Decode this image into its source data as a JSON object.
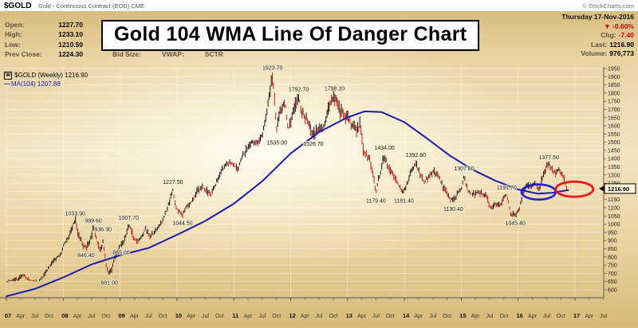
{
  "header": {
    "symbol": "$GOLD",
    "description": "Gold - Continuous Contract (EOD) CME",
    "copyright": "© StockCharts.com"
  },
  "quote_panel": {
    "rows": [
      {
        "label": "Open:",
        "value": "1227.70"
      },
      {
        "label": "High:",
        "value": "1233.10"
      },
      {
        "label": "Low:",
        "value": "1210.50"
      },
      {
        "label": "Prev Close:",
        "value": "1224.30"
      }
    ],
    "partial_labels": [
      "Bid Size:",
      "VWAP:",
      "SCTR"
    ]
  },
  "info_panel": {
    "date": "Thursday 17-Nov-2016",
    "down_arrow": "▼",
    "change_pct": "-0.60%",
    "rows": [
      {
        "label": "Chg:",
        "value": "-7.40",
        "negative": true
      },
      {
        "label": "Last:",
        "value": "1216.90",
        "negative": false
      },
      {
        "label": "Volume:",
        "value": "976,773",
        "negative": false
      }
    ]
  },
  "title_overlay": "Gold 104 WMA Line Of Danger Chart",
  "legend": {
    "periodicity_icon": "W",
    "series1_label": "$GOLD (Weekly) 1216.90",
    "series2_dash": "—",
    "series2_label": "MA(104) 1207.88"
  },
  "chart_data": {
    "type": "line",
    "symbol": "$GOLD",
    "periodicity": "Weekly",
    "title": "Gold 104 WMA Line Of Danger Chart",
    "last_price": 1216.9,
    "ma104_value": 1207.88,
    "axis_tag": "1216.90",
    "x_range": [
      2007.0,
      2017.6
    ],
    "y_axis": {
      "min": 600,
      "max": 1950,
      "step": 50
    },
    "x_ticks": {
      "year_labels": [
        "07",
        "08",
        "09",
        "10",
        "11",
        "12",
        "13",
        "14",
        "15",
        "16",
        "17"
      ],
      "month_labels": [
        "Apr",
        "Jul",
        "Oct"
      ]
    },
    "colors": {
      "grid": "rgba(255,255,255,0.42)"
    },
    "series": [
      {
        "name": "$GOLD weekly price",
        "type": "ohlc_bars",
        "colors": {
          "up": "#111111",
          "down": "#c41e1e"
        },
        "points": [
          [
            2007.0,
            640
          ],
          [
            2007.1,
            655
          ],
          [
            2007.2,
            665
          ],
          [
            2007.3,
            688
          ],
          [
            2007.45,
            652
          ],
          [
            2007.55,
            648
          ],
          [
            2007.62,
            665
          ],
          [
            2007.7,
            715
          ],
          [
            2007.78,
            745
          ],
          [
            2007.85,
            792
          ],
          [
            2007.95,
            806
          ],
          [
            2008.0,
            862
          ],
          [
            2008.08,
            915
          ],
          [
            2008.15,
            978
          ],
          [
            2008.21,
            1024
          ],
          [
            2008.27,
            938
          ],
          [
            2008.33,
            885
          ],
          [
            2008.4,
            855
          ],
          [
            2008.47,
            892
          ],
          [
            2008.53,
            978
          ],
          [
            2008.58,
            928
          ],
          [
            2008.65,
            828
          ],
          [
            2008.7,
            905
          ],
          [
            2008.76,
            742
          ],
          [
            2008.81,
            697
          ],
          [
            2008.87,
            752
          ],
          [
            2008.95,
            835
          ],
          [
            2009.02,
            878
          ],
          [
            2009.08,
            908
          ],
          [
            2009.15,
            998
          ],
          [
            2009.22,
            932
          ],
          [
            2009.3,
            892
          ],
          [
            2009.38,
            925
          ],
          [
            2009.45,
            972
          ],
          [
            2009.52,
            930
          ],
          [
            2009.6,
            950
          ],
          [
            2009.68,
            988
          ],
          [
            2009.75,
            1022
          ],
          [
            2009.83,
            1092
          ],
          [
            2009.9,
            1178
          ],
          [
            2009.93,
            1212
          ],
          [
            2009.98,
            1098
          ],
          [
            2010.05,
            1078
          ],
          [
            2010.1,
            1055
          ],
          [
            2010.18,
            1112
          ],
          [
            2010.28,
            1142
          ],
          [
            2010.37,
            1208
          ],
          [
            2010.45,
            1228
          ],
          [
            2010.53,
            1196
          ],
          [
            2010.6,
            1182
          ],
          [
            2010.68,
            1244
          ],
          [
            2010.76,
            1308
          ],
          [
            2010.84,
            1352
          ],
          [
            2010.93,
            1382
          ],
          [
            2011.0,
            1362
          ],
          [
            2011.07,
            1332
          ],
          [
            2011.15,
            1418
          ],
          [
            2011.25,
            1468
          ],
          [
            2011.33,
            1502
          ],
          [
            2011.42,
            1494
          ],
          [
            2011.5,
            1552
          ],
          [
            2011.57,
            1658
          ],
          [
            2011.63,
            1795
          ],
          [
            2011.68,
            1898
          ],
          [
            2011.71,
            1788
          ],
          [
            2011.75,
            1582
          ],
          [
            2011.8,
            1678
          ],
          [
            2011.85,
            1728
          ],
          [
            2011.9,
            1742
          ],
          [
            2011.96,
            1582
          ],
          [
            2012.03,
            1658
          ],
          [
            2012.1,
            1738
          ],
          [
            2012.14,
            1778
          ],
          [
            2012.2,
            1678
          ],
          [
            2012.28,
            1648
          ],
          [
            2012.36,
            1562
          ],
          [
            2012.4,
            1538
          ],
          [
            2012.47,
            1588
          ],
          [
            2012.55,
            1582
          ],
          [
            2012.63,
            1642
          ],
          [
            2012.7,
            1758
          ],
          [
            2012.77,
            1778
          ],
          [
            2012.85,
            1712
          ],
          [
            2012.93,
            1662
          ],
          [
            2013.0,
            1658
          ],
          [
            2013.08,
            1608
          ],
          [
            2013.15,
            1588
          ],
          [
            2013.22,
            1598
          ],
          [
            2013.27,
            1468
          ],
          [
            2013.33,
            1418
          ],
          [
            2013.4,
            1392
          ],
          [
            2013.46,
            1278
          ],
          [
            2013.5,
            1202
          ],
          [
            2013.56,
            1288
          ],
          [
            2013.62,
            1392
          ],
          [
            2013.65,
            1418
          ],
          [
            2013.72,
            1328
          ],
          [
            2013.8,
            1318
          ],
          [
            2013.87,
            1252
          ],
          [
            2013.95,
            1208
          ],
          [
            2013.99,
            1194
          ],
          [
            2014.05,
            1252
          ],
          [
            2014.12,
            1318
          ],
          [
            2014.2,
            1378
          ],
          [
            2014.28,
            1294
          ],
          [
            2014.36,
            1258
          ],
          [
            2014.44,
            1298
          ],
          [
            2014.52,
            1318
          ],
          [
            2014.6,
            1288
          ],
          [
            2014.7,
            1218
          ],
          [
            2014.78,
            1172
          ],
          [
            2014.86,
            1142
          ],
          [
            2014.93,
            1192
          ],
          [
            2015.0,
            1218
          ],
          [
            2015.05,
            1288
          ],
          [
            2015.12,
            1204
          ],
          [
            2015.2,
            1178
          ],
          [
            2015.28,
            1198
          ],
          [
            2015.36,
            1188
          ],
          [
            2015.44,
            1172
          ],
          [
            2015.52,
            1092
          ],
          [
            2015.6,
            1128
          ],
          [
            2015.68,
            1112
          ],
          [
            2015.76,
            1162
          ],
          [
            2015.8,
            1178
          ],
          [
            2015.87,
            1068
          ],
          [
            2015.95,
            1052
          ],
          [
            2016.02,
            1094
          ],
          [
            2016.1,
            1198
          ],
          [
            2016.15,
            1238
          ],
          [
            2016.22,
            1224
          ],
          [
            2016.3,
            1252
          ],
          [
            2016.37,
            1214
          ],
          [
            2016.44,
            1298
          ],
          [
            2016.5,
            1352
          ],
          [
            2016.54,
            1364
          ],
          [
            2016.6,
            1328
          ],
          [
            2016.66,
            1314
          ],
          [
            2016.72,
            1334
          ],
          [
            2016.78,
            1302
          ],
          [
            2016.82,
            1262
          ],
          [
            2016.86,
            1217
          ]
        ]
      },
      {
        "name": "MA(104)",
        "type": "line",
        "color": "#1a1aad",
        "points": [
          [
            2007.0,
            560
          ],
          [
            2007.5,
            605
          ],
          [
            2008.0,
            675
          ],
          [
            2008.5,
            755
          ],
          [
            2009.0,
            810
          ],
          [
            2009.5,
            855
          ],
          [
            2010.0,
            935
          ],
          [
            2010.5,
            1020
          ],
          [
            2011.0,
            1125
          ],
          [
            2011.5,
            1262
          ],
          [
            2012.0,
            1432
          ],
          [
            2012.5,
            1562
          ],
          [
            2013.0,
            1652
          ],
          [
            2013.3,
            1688
          ],
          [
            2013.6,
            1684
          ],
          [
            2014.0,
            1622
          ],
          [
            2014.4,
            1522
          ],
          [
            2014.8,
            1418
          ],
          [
            2015.2,
            1332
          ],
          [
            2015.6,
            1265
          ],
          [
            2016.0,
            1212
          ],
          [
            2016.35,
            1186
          ],
          [
            2016.6,
            1192
          ],
          [
            2016.88,
            1208
          ]
        ]
      }
    ],
    "price_labels": [
      {
        "t": 2008.21,
        "price": 1033.9,
        "text": "1033.90",
        "side": "above"
      },
      {
        "t": 2008.53,
        "price": 989.6,
        "text": "989.60",
        "side": "above"
      },
      {
        "t": 2008.7,
        "price": 936.3,
        "text": "936.30",
        "side": "above"
      },
      {
        "t": 2008.4,
        "price": 846.4,
        "text": "846.40",
        "side": "below"
      },
      {
        "t": 2008.81,
        "price": 681.0,
        "text": "681.00",
        "side": "below"
      },
      {
        "t": 2009.02,
        "price": 865.0,
        "text": "865.00",
        "side": "below"
      },
      {
        "t": 2009.15,
        "price": 1007.7,
        "text": "1007.70",
        "side": "above"
      },
      {
        "t": 2009.93,
        "price": 1227.5,
        "text": "1227.50",
        "side": "above"
      },
      {
        "t": 2010.1,
        "price": 1044.5,
        "text": "1044.50",
        "side": "below"
      },
      {
        "t": 2011.68,
        "price": 1923.7,
        "text": "1923.70",
        "side": "above"
      },
      {
        "t": 2011.76,
        "price": 1535.0,
        "text": "1535.00",
        "side": "below"
      },
      {
        "t": 2012.14,
        "price": 1792.7,
        "text": "1792.70",
        "side": "above"
      },
      {
        "t": 2012.4,
        "price": 1526.7,
        "text": "1526.70",
        "side": "below"
      },
      {
        "t": 2012.77,
        "price": 1798.1,
        "text": "1798.10",
        "side": "above"
      },
      {
        "t": 2013.5,
        "price": 1179.4,
        "text": "1179.40",
        "side": "below"
      },
      {
        "t": 2013.65,
        "price": 1434.0,
        "text": "1434.00",
        "side": "above"
      },
      {
        "t": 2013.99,
        "price": 1181.4,
        "text": "1181.40",
        "side": "below"
      },
      {
        "t": 2014.2,
        "price": 1392.6,
        "text": "1392.60",
        "side": "above"
      },
      {
        "t": 2014.86,
        "price": 1130.4,
        "text": "1130.40",
        "side": "below"
      },
      {
        "t": 2015.05,
        "price": 1307.8,
        "text": "1307.80",
        "side": "above"
      },
      {
        "t": 2015.8,
        "price": 1191.7,
        "text": "1191.70",
        "side": "above"
      },
      {
        "t": 2015.95,
        "price": 1045.4,
        "text": "1045.40",
        "side": "below"
      },
      {
        "t": 2016.54,
        "price": 1377.5,
        "text": "1377.50",
        "side": "above"
      }
    ],
    "annotations": [
      {
        "shape": "ellipse",
        "color": "#1414dd",
        "t": 2016.36,
        "price": 1196,
        "rx_years": 0.3,
        "ry_price": 46,
        "stroke_width": 2.6
      },
      {
        "shape": "ellipse",
        "color": "#e81111",
        "t": 2016.99,
        "price": 1213,
        "rx_years": 0.33,
        "ry_price": 46,
        "stroke_width": 2.8
      }
    ]
  }
}
